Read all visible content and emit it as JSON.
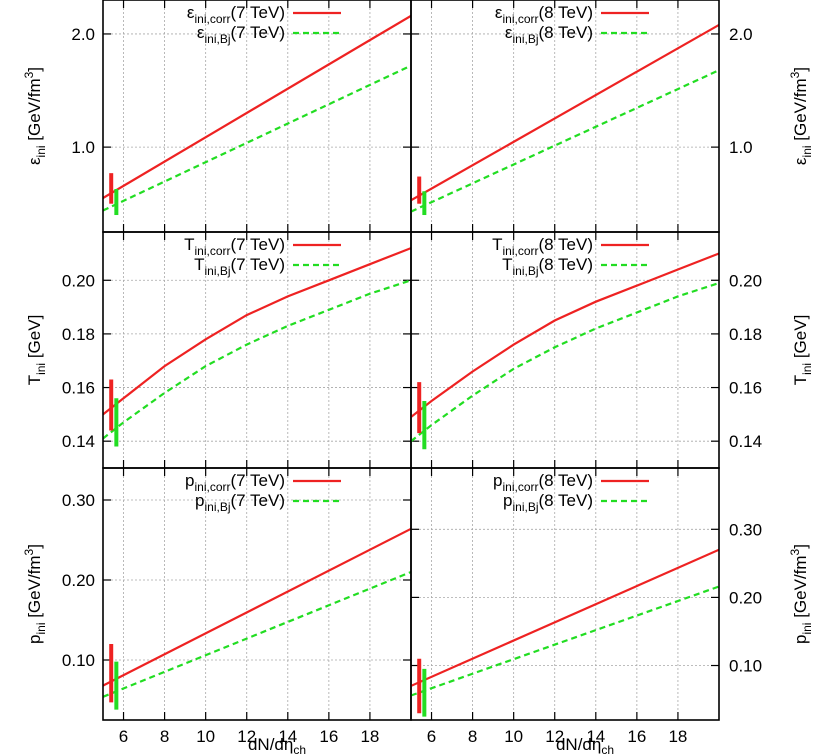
{
  "chart_data": [
    {
      "type": "line",
      "panel": "energy-7TeV",
      "ylabel_main": "ε",
      "ylabel_sub": "ini",
      "ylabel_unit": "[GeV/fm",
      "ylabel_sup": "3",
      "ylabel_end": "]",
      "yticks": [
        1.0,
        2.0
      ],
      "ytick_labels": [
        "1.0",
        "2.0"
      ],
      "ylim": [
        0.25,
        2.3
      ],
      "xlim": [
        5,
        20
      ],
      "xticks": [
        6,
        8,
        10,
        12,
        14,
        16,
        18
      ],
      "series": [
        {
          "name_main": "ε",
          "name_sub": "ini,corr",
          "name_suffix": "(7 TeV)",
          "color": "#ee2222",
          "dash": "solid",
          "x": [
            5,
            20
          ],
          "y": [
            0.55,
            2.16
          ]
        },
        {
          "name_main": "ε",
          "name_sub": "ini,Bj",
          "name_suffix": "(7 TeV)",
          "color": "#22dd22",
          "dash": "dashed",
          "x": [
            5,
            20
          ],
          "y": [
            0.44,
            1.72
          ]
        }
      ],
      "error_bars": [
        {
          "x": 5.4,
          "ylow": 0.5,
          "yhigh": 0.77,
          "color": "#ee2222"
        },
        {
          "x": 5.65,
          "ylow": 0.4,
          "yhigh": 0.63,
          "color": "#22dd22"
        }
      ]
    },
    {
      "type": "line",
      "panel": "energy-8TeV",
      "ylabel_main": "ε",
      "ylabel_sub": "ini",
      "ylabel_unit": "[GeV/fm",
      "ylabel_sup": "3",
      "ylabel_end": "]",
      "yticks": [
        1.0,
        2.0
      ],
      "ytick_labels": [
        "1.0",
        "2.0"
      ],
      "ylim": [
        0.25,
        2.3
      ],
      "xlim": [
        5,
        20
      ],
      "xticks": [
        6,
        8,
        10,
        12,
        14,
        16,
        18
      ],
      "series": [
        {
          "name_main": "ε",
          "name_sub": "ini,corr",
          "name_suffix": "(8 TeV)",
          "color": "#ee2222",
          "dash": "solid",
          "x": [
            5,
            20
          ],
          "y": [
            0.53,
            2.08
          ]
        },
        {
          "name_main": "ε",
          "name_sub": "ini,Bj",
          "name_suffix": "(8 TeV)",
          "color": "#22dd22",
          "dash": "dashed",
          "x": [
            5,
            20
          ],
          "y": [
            0.43,
            1.68
          ]
        }
      ],
      "error_bars": [
        {
          "x": 5.4,
          "ylow": 0.5,
          "yhigh": 0.74,
          "color": "#ee2222"
        },
        {
          "x": 5.65,
          "ylow": 0.4,
          "yhigh": 0.61,
          "color": "#22dd22"
        }
      ]
    },
    {
      "type": "line",
      "panel": "temperature-7TeV",
      "ylabel_main": "T",
      "ylabel_sub": "ini",
      "ylabel_unit": "[GeV]",
      "ylabel_sup": "",
      "ylabel_end": "",
      "yticks": [
        0.14,
        0.16,
        0.18,
        0.2
      ],
      "ytick_labels": [
        "0.14",
        "0.16",
        "0.18",
        "0.20"
      ],
      "ylim": [
        0.13,
        0.218
      ],
      "xlim": [
        5,
        20
      ],
      "xticks": [
        6,
        8,
        10,
        12,
        14,
        16,
        18
      ],
      "series": [
        {
          "name_main": "T",
          "name_sub": "ini,corr",
          "name_suffix": "(7 TeV)",
          "color": "#ee2222",
          "dash": "solid",
          "x": [
            5,
            6,
            8,
            10,
            12,
            14,
            16,
            18,
            20
          ],
          "y": [
            0.15,
            0.156,
            0.168,
            0.178,
            0.187,
            0.194,
            0.2,
            0.206,
            0.212
          ]
        },
        {
          "name_main": "T",
          "name_sub": "ini,Bj",
          "name_suffix": "(7 TeV)",
          "color": "#22dd22",
          "dash": "dashed",
          "x": [
            5,
            6,
            8,
            10,
            12,
            14,
            16,
            18,
            20
          ],
          "y": [
            0.141,
            0.147,
            0.158,
            0.168,
            0.176,
            0.183,
            0.189,
            0.195,
            0.2
          ]
        }
      ],
      "error_bars": [
        {
          "x": 5.4,
          "ylow": 0.144,
          "yhigh": 0.163,
          "color": "#ee2222"
        },
        {
          "x": 5.65,
          "ylow": 0.138,
          "yhigh": 0.156,
          "color": "#22dd22"
        }
      ]
    },
    {
      "type": "line",
      "panel": "temperature-8TeV",
      "ylabel_main": "T",
      "ylabel_sub": "ini",
      "ylabel_unit": "[GeV]",
      "ylabel_sup": "",
      "ylabel_end": "",
      "yticks": [
        0.14,
        0.16,
        0.18,
        0.2
      ],
      "ytick_labels": [
        "0.14",
        "0.16",
        "0.18",
        "0.20"
      ],
      "ylim": [
        0.13,
        0.218
      ],
      "xlim": [
        5,
        20
      ],
      "xticks": [
        6,
        8,
        10,
        12,
        14,
        16,
        18
      ],
      "series": [
        {
          "name_main": "T",
          "name_sub": "ini,corr",
          "name_suffix": "(8 TeV)",
          "color": "#ee2222",
          "dash": "solid",
          "x": [
            5,
            6,
            8,
            10,
            12,
            14,
            16,
            18,
            20
          ],
          "y": [
            0.149,
            0.155,
            0.166,
            0.176,
            0.185,
            0.192,
            0.198,
            0.204,
            0.21
          ]
        },
        {
          "name_main": "T",
          "name_sub": "ini,Bj",
          "name_suffix": "(8 TeV)",
          "color": "#22dd22",
          "dash": "dashed",
          "x": [
            5,
            6,
            8,
            10,
            12,
            14,
            16,
            18,
            20
          ],
          "y": [
            0.14,
            0.146,
            0.157,
            0.167,
            0.175,
            0.182,
            0.188,
            0.194,
            0.199
          ]
        }
      ],
      "error_bars": [
        {
          "x": 5.4,
          "ylow": 0.143,
          "yhigh": 0.162,
          "color": "#ee2222"
        },
        {
          "x": 5.65,
          "ylow": 0.137,
          "yhigh": 0.155,
          "color": "#22dd22"
        }
      ]
    },
    {
      "type": "line",
      "panel": "pressure-7TeV",
      "ylabel_main": "p",
      "ylabel_sub": "ini",
      "ylabel_unit": "[GeV/fm",
      "ylabel_sup": "3",
      "ylabel_end": "]",
      "yticks": [
        0.1,
        0.2,
        0.3
      ],
      "ytick_labels": [
        "0.10",
        "0.20",
        "0.30"
      ],
      "ylim": [
        0.025,
        0.34
      ],
      "xlim": [
        5,
        20
      ],
      "xticks": [
        6,
        8,
        10,
        12,
        14,
        16,
        18
      ],
      "series": [
        {
          "name_main": "p",
          "name_sub": "ini,corr",
          "name_suffix": "(7 TeV)",
          "color": "#ee2222",
          "dash": "solid",
          "x": [
            5,
            20
          ],
          "y": [
            0.068,
            0.264
          ]
        },
        {
          "name_main": "p",
          "name_sub": "ini,Bj",
          "name_suffix": "(7 TeV)",
          "color": "#22dd22",
          "dash": "dashed",
          "x": [
            5,
            20
          ],
          "y": [
            0.054,
            0.21
          ]
        }
      ],
      "error_bars": [
        {
          "x": 5.4,
          "ylow": 0.047,
          "yhigh": 0.12,
          "color": "#ee2222"
        },
        {
          "x": 5.65,
          "ylow": 0.038,
          "yhigh": 0.098,
          "color": "#22dd22"
        }
      ]
    },
    {
      "type": "line",
      "panel": "pressure-8TeV",
      "ylabel_main": "p",
      "ylabel_sub": "ini",
      "ylabel_unit": "[GeV/fm",
      "ylabel_sup": "3",
      "ylabel_end": "]",
      "yticks": [
        0.1,
        0.2,
        0.3
      ],
      "ytick_labels": [
        "0.10",
        "0.20",
        "0.30"
      ],
      "ylim": [
        0.02,
        0.39
      ],
      "xlim": [
        5,
        20
      ],
      "xticks": [
        6,
        8,
        10,
        12,
        14,
        16,
        18
      ],
      "series": [
        {
          "name_main": "p",
          "name_sub": "ini,corr",
          "name_suffix": "(8 TeV)",
          "color": "#ee2222",
          "dash": "solid",
          "x": [
            5,
            20
          ],
          "y": [
            0.07,
            0.27
          ]
        },
        {
          "name_main": "p",
          "name_sub": "ini,Bj",
          "name_suffix": "(8 TeV)",
          "color": "#22dd22",
          "dash": "dashed",
          "x": [
            5,
            20
          ],
          "y": [
            0.056,
            0.216
          ]
        }
      ],
      "error_bars": [
        {
          "x": 5.4,
          "ylow": 0.03,
          "yhigh": 0.11,
          "color": "#ee2222"
        },
        {
          "x": 5.65,
          "ylow": 0.025,
          "yhigh": 0.095,
          "color": "#22dd22"
        }
      ]
    }
  ],
  "xlabel_main": "dN/dη",
  "xlabel_sub": "ch"
}
